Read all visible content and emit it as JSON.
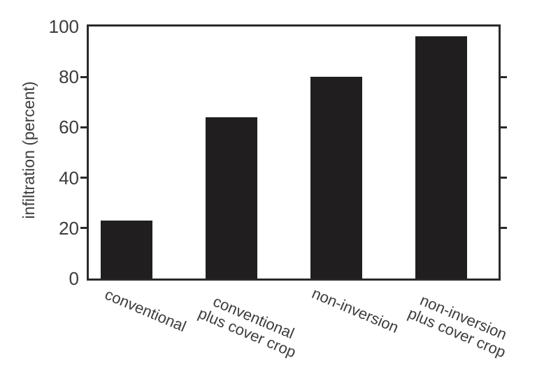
{
  "chart_data": {
    "type": "bar",
    "title": "",
    "xlabel": "",
    "ylabel": "infiltration (percent)",
    "categories": [
      "conventional",
      "conventional\nplus cover crop",
      "non-inversion",
      "non-inversion\nplus cover crop"
    ],
    "values": [
      23,
      64,
      80,
      96
    ],
    "ylim": [
      0,
      100
    ],
    "yticks": [
      0,
      20,
      40,
      60,
      80,
      100
    ],
    "grid": false,
    "legend": "none",
    "bar_color": "#201e1e",
    "axis_color": "#2b2a2a",
    "text_color": "#3d3c3c",
    "background": "#ffffff"
  }
}
